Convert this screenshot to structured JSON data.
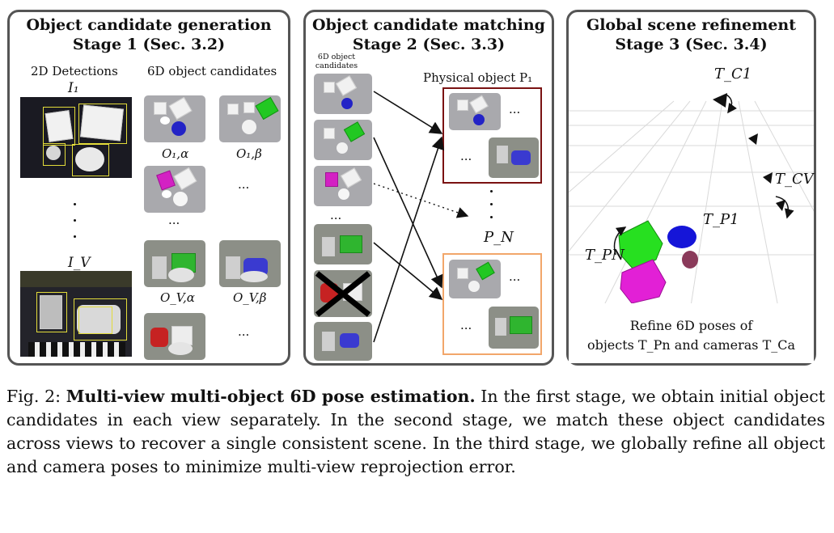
{
  "stage1": {
    "title_line1": "Object candidate generation",
    "title_line2": "Stage 1 (Sec. 3.2)",
    "detections_label": "2D Detections",
    "candidates_label": "6D object candidates",
    "image1_label": "I₁",
    "imageV_label": "I_V",
    "cand_1a": "O₁,α",
    "cand_1b": "O₁,β",
    "cand_Va": "O_V,α",
    "cand_Vb": "O_V,β",
    "ellipsis": "..."
  },
  "stage2": {
    "title_line1": "Object candidate matching",
    "title_line2": "Stage 2 (Sec. 3.3)",
    "candidates_label": "6D object candidates",
    "physical_object_label": "Physical object P₁",
    "pn_label": "P_N",
    "ellipsis": "..."
  },
  "stage3": {
    "title_line1": "Global scene refinement",
    "title_line2": "Stage 3 (Sec. 3.4)",
    "tc1": "T_C1",
    "tcv": "T_CV",
    "tp1": "T_P1",
    "tpn": "T_PN",
    "refine_line1": "Refine 6D poses of",
    "refine_line2": "objects T_Pn and cameras T_Ca"
  },
  "caption": {
    "prefix": "Fig. 2: ",
    "bold": "Multi-view multi-object 6D pose estimation.",
    "body": " In the first stage, we obtain initial object candidates in each view separately. In the second stage, we match these object candidates across views to recover a single consistent scene. In the third stage, we globally refine all object and camera poses to minimize multi-view reprojection error."
  },
  "colors": {
    "panel_border": "#555555",
    "p1_box": "#7a1212",
    "pn_box": "#f2a66a",
    "detection_box": "#e3dc3a"
  }
}
